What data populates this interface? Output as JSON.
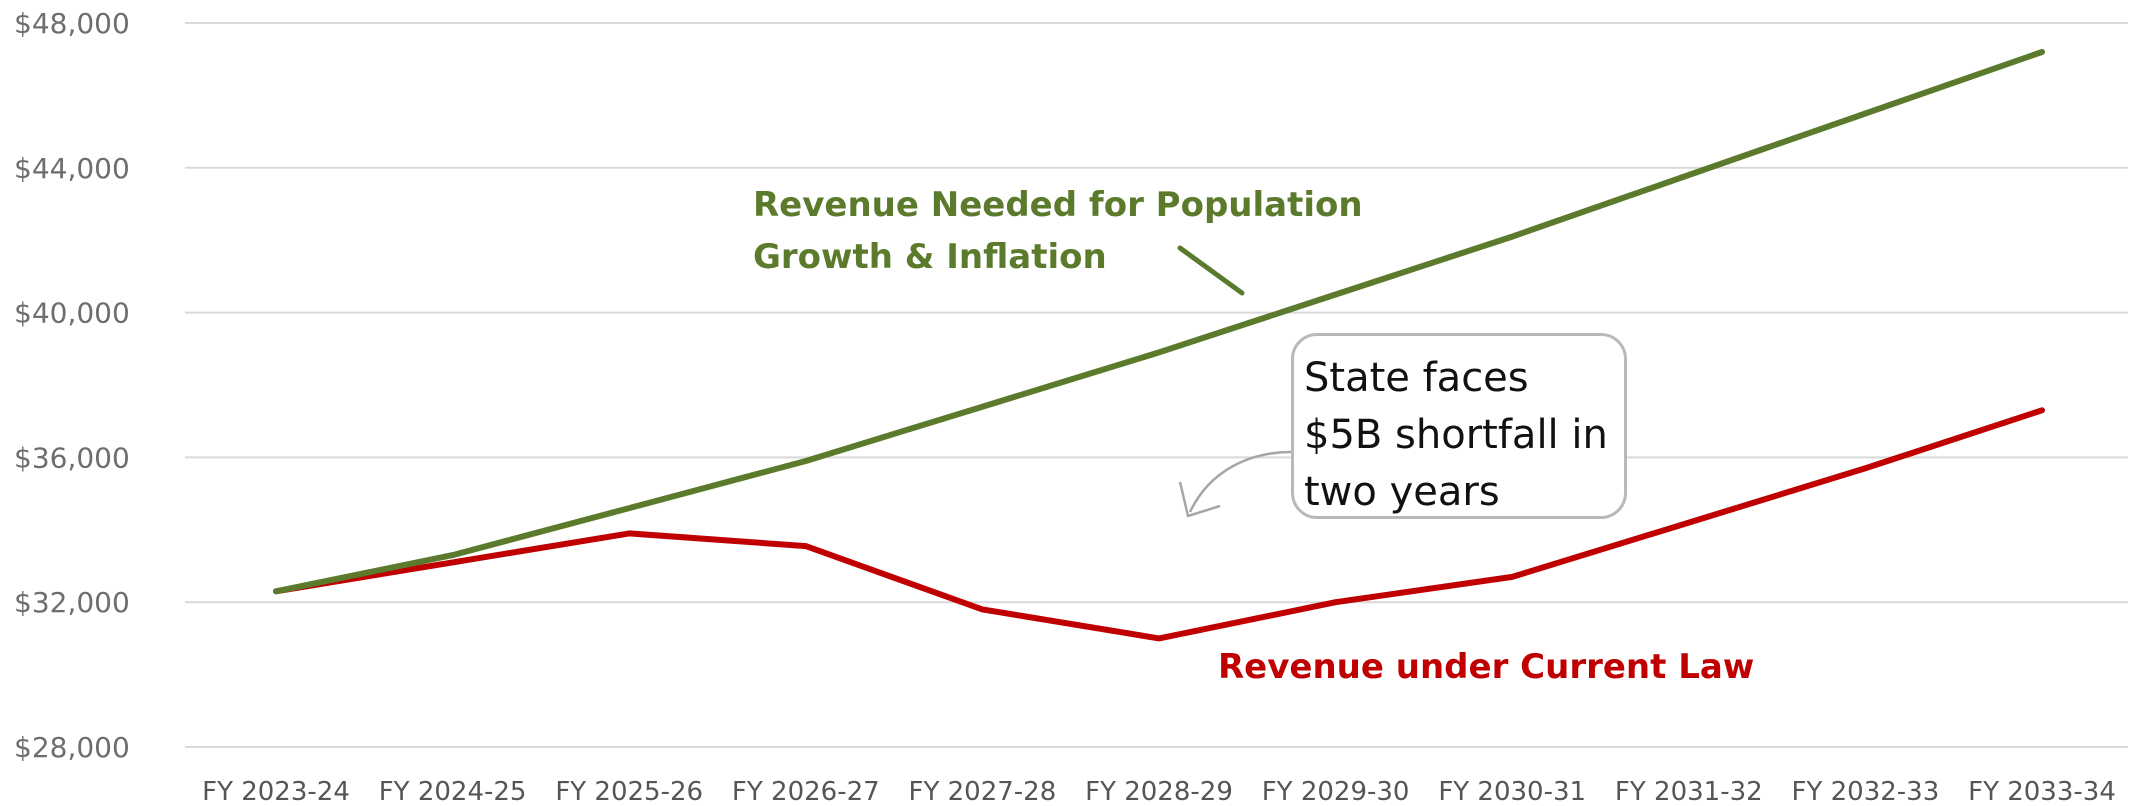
{
  "chart_data": {
    "type": "line",
    "categories": [
      "FY 2023-24",
      "FY 2024-25",
      "FY 2025-26",
      "FY 2026-27",
      "FY 2027-28",
      "FY 2028-29",
      "FY 2029-30",
      "FY 2030-31",
      "FY 2031-32",
      "FY 2032-33",
      "FY 2033-34"
    ],
    "series": [
      {
        "name_lines": [
          "Revenue Needed for Population",
          "Growth & Inflation"
        ],
        "color": "#5b7a2b",
        "values": [
          32300,
          33300,
          34600,
          35900,
          37400,
          38900,
          40500,
          42100,
          43800,
          45500,
          47200
        ]
      },
      {
        "name": "Revenue under Current Law",
        "color": "#c00000",
        "values": [
          32300,
          33100,
          33900,
          33550,
          31800,
          31000,
          32000,
          32700,
          34200,
          35700,
          37300
        ]
      }
    ],
    "ylim": [
      28000,
      48000
    ],
    "yticks": [
      {
        "value": 28000,
        "label": "$28,000"
      },
      {
        "value": 32000,
        "label": "$32,000"
      },
      {
        "value": 36000,
        "label": "$36,000"
      },
      {
        "value": 40000,
        "label": "$40,000"
      },
      {
        "value": 44000,
        "label": "$44,000"
      },
      {
        "value": 48000,
        "label": "$48,000"
      }
    ],
    "grid": true,
    "annotation": {
      "lines": [
        "State faces",
        "$5B shortfall in",
        "two years"
      ]
    }
  }
}
